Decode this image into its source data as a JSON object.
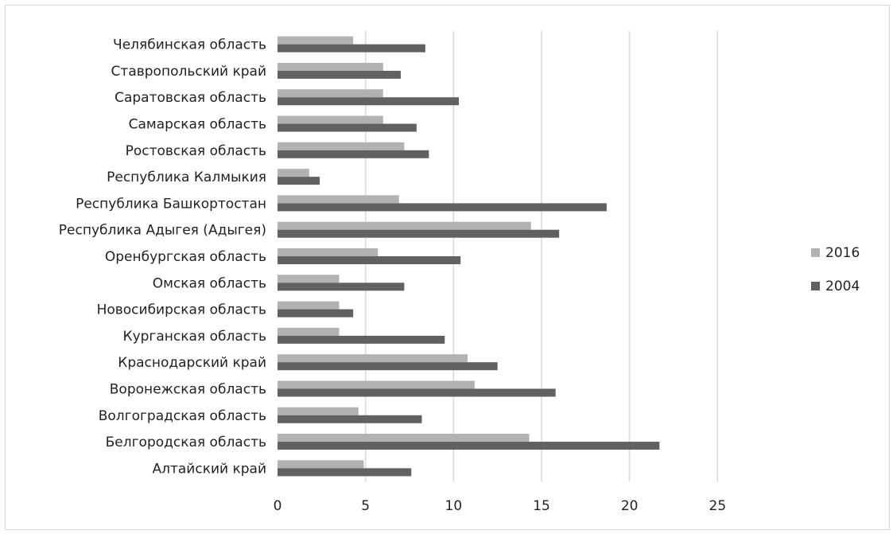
{
  "chart_data": {
    "type": "bar",
    "orientation": "horizontal",
    "categories": [
      "Челябинская область",
      "Ставропольский край",
      "Саратовская область",
      "Самарская область",
      "Ростовская область",
      "Республика Калмыкия",
      "Республика Башкортостан",
      "Республика Адыгея (Адыгея)",
      "Оренбургская область",
      "Омская область",
      "Новосибирская область",
      "Курганская область",
      "Краснодарский край",
      "Воронежская область",
      "Волгоградская область",
      "Белгородская область",
      "Алтайский край"
    ],
    "series": [
      {
        "name": "2016",
        "color": "#b2b2b2",
        "values": [
          4.3,
          6.0,
          6.0,
          6.0,
          7.2,
          1.8,
          6.9,
          14.4,
          5.7,
          3.5,
          3.5,
          3.5,
          10.8,
          11.2,
          4.6,
          14.3,
          4.9
        ]
      },
      {
        "name": "2004",
        "color": "#616161",
        "values": [
          8.4,
          7.0,
          10.3,
          7.9,
          8.6,
          2.4,
          18.7,
          16.0,
          10.4,
          7.2,
          4.3,
          9.5,
          12.5,
          15.8,
          8.2,
          21.7,
          7.6
        ]
      }
    ],
    "xlim": [
      0,
      25
    ],
    "xticks": [
      0,
      5,
      10,
      15,
      20,
      25
    ],
    "grid": true,
    "legend_position": "right",
    "title": "",
    "xlabel": "",
    "ylabel": ""
  }
}
